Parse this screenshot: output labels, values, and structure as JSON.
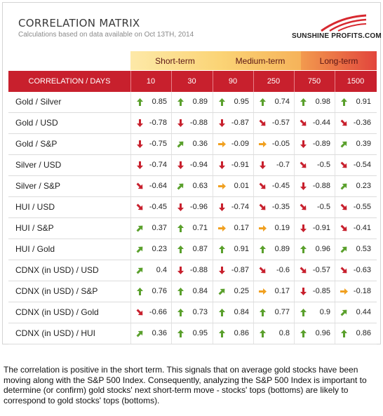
{
  "title": "CORRELATION MATRIX",
  "subtitle": "Calculations based on data available on Oct 13TH, 2014",
  "logo_text": "SUNSHINE PROFITS.COM",
  "bands": {
    "short": "Short-term",
    "medium": "Medium-term",
    "long": "Long-term"
  },
  "header": {
    "label": "CORRELATION / DAYS",
    "days": [
      "10",
      "30",
      "90",
      "250",
      "750",
      "1500"
    ]
  },
  "colors": {
    "up": "#5aa02c",
    "down": "#c8202d",
    "flat": "#f0a020",
    "header_red": "#c8202d"
  },
  "rows": [
    {
      "label": "Gold / Silver",
      "cells": [
        {
          "v": "0.85",
          "dir": "up"
        },
        {
          "v": "0.89",
          "dir": "up"
        },
        {
          "v": "0.95",
          "dir": "up"
        },
        {
          "v": "0.74",
          "dir": "up"
        },
        {
          "v": "0.98",
          "dir": "up"
        },
        {
          "v": "0.91",
          "dir": "up"
        }
      ]
    },
    {
      "label": "Gold / USD",
      "cells": [
        {
          "v": "-0.78",
          "dir": "down"
        },
        {
          "v": "-0.88",
          "dir": "down"
        },
        {
          "v": "-0.87",
          "dir": "down"
        },
        {
          "v": "-0.57",
          "dir": "downright"
        },
        {
          "v": "-0.44",
          "dir": "downright"
        },
        {
          "v": "-0.36",
          "dir": "downright"
        }
      ]
    },
    {
      "label": "Gold / S&P",
      "cells": [
        {
          "v": "-0.75",
          "dir": "down"
        },
        {
          "v": "0.36",
          "dir": "upright"
        },
        {
          "v": "-0.09",
          "dir": "flat"
        },
        {
          "v": "-0.05",
          "dir": "flat"
        },
        {
          "v": "-0.89",
          "dir": "down"
        },
        {
          "v": "0.39",
          "dir": "upright"
        }
      ]
    },
    {
      "label": "Silver / USD",
      "cells": [
        {
          "v": "-0.74",
          "dir": "down"
        },
        {
          "v": "-0.94",
          "dir": "down"
        },
        {
          "v": "-0.91",
          "dir": "down"
        },
        {
          "v": "-0.7",
          "dir": "down"
        },
        {
          "v": "-0.5",
          "dir": "downright"
        },
        {
          "v": "-0.54",
          "dir": "downright"
        }
      ]
    },
    {
      "label": "Silver / S&P",
      "cells": [
        {
          "v": "-0.64",
          "dir": "downright"
        },
        {
          "v": "0.63",
          "dir": "upright"
        },
        {
          "v": "0.01",
          "dir": "flat"
        },
        {
          "v": "-0.45",
          "dir": "downright"
        },
        {
          "v": "-0.88",
          "dir": "down"
        },
        {
          "v": "0.23",
          "dir": "upright"
        }
      ]
    },
    {
      "label": "HUI / USD",
      "cells": [
        {
          "v": "-0.45",
          "dir": "downright"
        },
        {
          "v": "-0.96",
          "dir": "down"
        },
        {
          "v": "-0.74",
          "dir": "down"
        },
        {
          "v": "-0.35",
          "dir": "downright"
        },
        {
          "v": "-0.5",
          "dir": "downright"
        },
        {
          "v": "-0.55",
          "dir": "downright"
        }
      ]
    },
    {
      "label": "HUI / S&P",
      "cells": [
        {
          "v": "0.37",
          "dir": "upright"
        },
        {
          "v": "0.71",
          "dir": "up"
        },
        {
          "v": "0.17",
          "dir": "flat"
        },
        {
          "v": "0.19",
          "dir": "flat"
        },
        {
          "v": "-0.91",
          "dir": "down"
        },
        {
          "v": "-0.41",
          "dir": "downright"
        }
      ]
    },
    {
      "label": "HUI / Gold",
      "cells": [
        {
          "v": "0.23",
          "dir": "upright"
        },
        {
          "v": "0.87",
          "dir": "up"
        },
        {
          "v": "0.91",
          "dir": "up"
        },
        {
          "v": "0.89",
          "dir": "up"
        },
        {
          "v": "0.96",
          "dir": "up"
        },
        {
          "v": "0.53",
          "dir": "upright"
        }
      ]
    },
    {
      "label": "CDNX (in USD) / USD",
      "cells": [
        {
          "v": "0.4",
          "dir": "upright"
        },
        {
          "v": "-0.88",
          "dir": "down"
        },
        {
          "v": "-0.87",
          "dir": "down"
        },
        {
          "v": "-0.6",
          "dir": "downright"
        },
        {
          "v": "-0.57",
          "dir": "downright"
        },
        {
          "v": "-0.63",
          "dir": "downright"
        }
      ]
    },
    {
      "label": "CDNX (in USD) / S&P",
      "cells": [
        {
          "v": "0.76",
          "dir": "up"
        },
        {
          "v": "0.84",
          "dir": "up"
        },
        {
          "v": "0.25",
          "dir": "upright"
        },
        {
          "v": "0.17",
          "dir": "flat"
        },
        {
          "v": "-0.85",
          "dir": "down"
        },
        {
          "v": "-0.18",
          "dir": "flat"
        }
      ]
    },
    {
      "label": "CDNX (in USD) / Gold",
      "cells": [
        {
          "v": "-0.66",
          "dir": "downright"
        },
        {
          "v": "0.73",
          "dir": "up"
        },
        {
          "v": "0.84",
          "dir": "up"
        },
        {
          "v": "0.77",
          "dir": "up"
        },
        {
          "v": "0.9",
          "dir": "up"
        },
        {
          "v": "0.44",
          "dir": "upright"
        }
      ]
    },
    {
      "label": "CDNX (in USD) / HUI",
      "cells": [
        {
          "v": "0.36",
          "dir": "upright"
        },
        {
          "v": "0.95",
          "dir": "up"
        },
        {
          "v": "0.86",
          "dir": "up"
        },
        {
          "v": "0.8",
          "dir": "up"
        },
        {
          "v": "0.96",
          "dir": "up"
        },
        {
          "v": "0.86",
          "dir": "up"
        }
      ]
    }
  ],
  "description": "The correlation is positive in the short term. This signals that on average gold stocks have been moving along with the S&P 500 Index. Consequently, analyzing the S&P 500 Index is important to determine (or confirm) gold stocks' next short-term move - stocks' tops (bottoms) are likely to correspond to gold stocks' tops (bottoms)."
}
